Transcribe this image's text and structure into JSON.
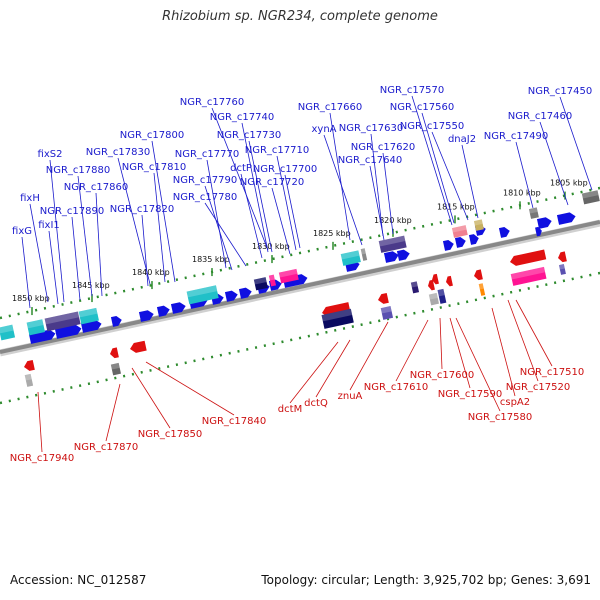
{
  "title": "Rhizobium sp. NGR234, complete genome",
  "footer": {
    "accession": "Accession: NC_012587",
    "summary": "Topology: circular; Length: 3,925,702 bp; Genes: 3,691"
  },
  "colors": {
    "forward_label": "#1a1acc",
    "reverse_label": "#cc1010",
    "backbone": "#8a8a8a",
    "dots": "#2e8b2e"
  },
  "ticks": [
    "1805 kbp",
    "1810 kbp",
    "1815 kbp",
    "1820 kbp",
    "1825 kbp",
    "1830 kbp",
    "1835 kbp",
    "1840 kbp",
    "1845 kbp",
    "1850 kbp"
  ],
  "forward_labels": [
    "NGR_c17450",
    "NGR_c17460",
    "NGR_c17490",
    "NGR_c17570",
    "NGR_c17560",
    "NGR_c17550",
    "dnaJ2",
    "NGR_c17660",
    "xynA",
    "NGR_c17630",
    "NGR_c17620",
    "NGR_c17640",
    "NGR_c17760",
    "NGR_c17740",
    "NGR_c17730",
    "NGR_c17710",
    "NGR_c17700",
    "NGR_c17720",
    "dctP",
    "NGR_c17770",
    "NGR_c17790",
    "NGR_c17780",
    "NGR_c17800",
    "NGR_c17810",
    "NGR_c17830",
    "NGR_c17820",
    "fixS2",
    "NGR_c17880",
    "NGR_c17860",
    "fixH",
    "NGR_c17890",
    "fixI1",
    "fixG"
  ],
  "reverse_labels": [
    "NGR_c17510",
    "NGR_c17520",
    "cspA2",
    "NGR_c17580",
    "NGR_c17590",
    "NGR_c17600",
    "NGR_c17610",
    "znuA",
    "dctQ",
    "dctM",
    "NGR_c17840",
    "NGR_c17850",
    "NGR_c17870",
    "NGR_c17940"
  ]
}
